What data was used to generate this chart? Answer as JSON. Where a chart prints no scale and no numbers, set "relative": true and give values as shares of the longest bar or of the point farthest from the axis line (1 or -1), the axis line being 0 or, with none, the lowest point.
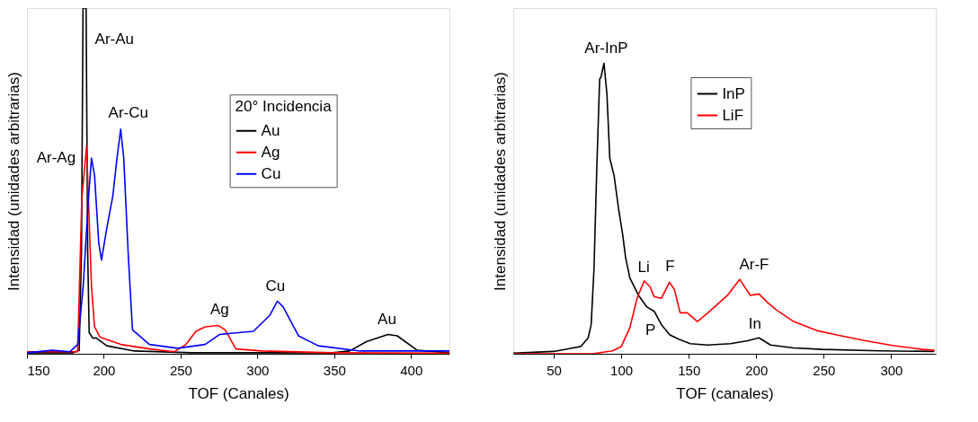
{
  "chart_data": [
    {
      "type": "line",
      "relative": true,
      "xlabel": "TOF (Canales)",
      "ylabel": "Intensidad (unidades arbitrarias)",
      "legend_title": "20° Incidencia",
      "legend": "right",
      "grid": false,
      "marker": "none",
      "line_style": "solid",
      "xlim": [
        150,
        425
      ],
      "xticks": [
        150,
        200,
        250,
        300,
        350,
        400
      ],
      "series": [
        {
          "name": "Au",
          "color": "#000000",
          "x": [
            150,
            180,
            184,
            185.5,
            186.5,
            188.5,
            189.5,
            190.5,
            193,
            195,
            202,
            220,
            257,
            349,
            360,
            371,
            385,
            391,
            404,
            425
          ],
          "values": [
            0.003,
            0.003,
            0.01,
            0.3,
            1,
            1,
            0.3,
            0.061,
            0.045,
            0.046,
            0.023,
            0.008,
            0.003,
            0.003,
            0.008,
            0.035,
            0.056,
            0.052,
            0.01,
            0.003
          ]
        },
        {
          "name": "Ag",
          "color": "#ff0000",
          "x": [
            150,
            183,
            185.7,
            188.8,
            192,
            194,
            197.6,
            211,
            230,
            246,
            253.5,
            260,
            266,
            274.5,
            279,
            286,
            303,
            349,
            425
          ],
          "values": [
            0.006,
            0.006,
            0.448,
            0.6,
            0.195,
            0.078,
            0.048,
            0.027,
            0.014,
            0.006,
            0.027,
            0.065,
            0.078,
            0.082,
            0.069,
            0.014,
            0.008,
            0.003,
            0.002
          ]
        },
        {
          "name": "Cu",
          "color": "#0000ff",
          "x": [
            150,
            166.5,
            178,
            183,
            186.6,
            190,
            192,
            194,
            196.7,
            198.5,
            202,
            205.9,
            208.6,
            211,
            213,
            216,
            218.7,
            229.7,
            248,
            266,
            275.5,
            297.4,
            308,
            313,
            316.7,
            326.7,
            339.6,
            367,
            425
          ],
          "values": [
            0.003,
            0.01,
            0.006,
            0.027,
            0.195,
            0.448,
            0.566,
            0.516,
            0.322,
            0.271,
            0.364,
            0.457,
            0.566,
            0.65,
            0.566,
            0.28,
            0.069,
            0.027,
            0.016,
            0.027,
            0.056,
            0.065,
            0.111,
            0.152,
            0.136,
            0.052,
            0.023,
            0.008,
            0.008
          ]
        }
      ],
      "annotations": [
        "Ar-Au",
        "Ar-Ag",
        "Ar-Cu",
        "Ag",
        "Cu",
        "Au"
      ]
    },
    {
      "type": "line",
      "relative": true,
      "xlabel": "TOF (canales)",
      "ylabel": "Intensidad (unidades arbitrarias)",
      "legend": "top",
      "grid": false,
      "marker": "none",
      "line_style": "solid",
      "xlim": [
        20,
        333
      ],
      "xticks": [
        50,
        100,
        150,
        200,
        250,
        300
      ],
      "series": [
        {
          "name": "InP",
          "color": "#000000",
          "x": [
            20,
            50,
            61.7,
            70,
            75.5,
            77.7,
            79.8,
            81.9,
            84,
            85.1,
            87.2,
            89.4,
            91.5,
            94.7,
            97.9,
            101,
            103.2,
            106.4,
            112.8,
            119,
            124.5,
            129.8,
            136,
            142.6,
            151,
            163.8,
            180.9,
            193.6,
            202,
            210.6,
            227.7,
            249,
            291.5,
            331.9
          ],
          "values": [
            0.002,
            0.008,
            0.018,
            0.025,
            0.055,
            0.1,
            0.291,
            0.643,
            0.945,
            0.955,
            1,
            0.894,
            0.673,
            0.613,
            0.503,
            0.412,
            0.332,
            0.261,
            0.201,
            0.161,
            0.146,
            0.1,
            0.065,
            0.05,
            0.035,
            0.03,
            0.035,
            0.045,
            0.055,
            0.03,
            0.02,
            0.015,
            0.01,
            0.008
          ]
        },
        {
          "name": "LiF",
          "color": "#ff0000",
          "x": [
            20,
            78.7,
            93.6,
            100,
            106.4,
            111.7,
            117,
            121.3,
            124.5,
            129.8,
            135.7,
            139.4,
            143.6,
            148.9,
            156.4,
            161.7,
            170.2,
            178.7,
            187.7,
            195.7,
            202,
            208.5,
            214.9,
            227.7,
            244.7,
            259.6,
            280.9,
            302,
            323.4,
            332
          ],
          "values": [
            0,
            0,
            0.01,
            0.025,
            0.09,
            0.191,
            0.251,
            0.231,
            0.196,
            0.191,
            0.246,
            0.221,
            0.141,
            0.141,
            0.111,
            0.131,
            0.166,
            0.201,
            0.256,
            0.201,
            0.206,
            0.176,
            0.151,
            0.111,
            0.08,
            0.065,
            0.045,
            0.028,
            0.015,
            0.012
          ]
        }
      ],
      "annotations": [
        "Ar-InP",
        "Li",
        "F",
        "Ar-F",
        "P",
        "In"
      ]
    }
  ]
}
